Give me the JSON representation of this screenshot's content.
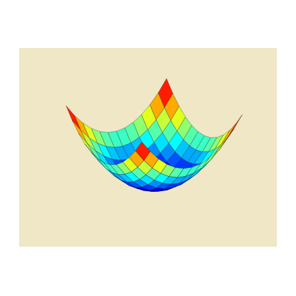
{
  "chart_data": {
    "type": "surface",
    "x": [
      -3,
      -2.5,
      -2,
      -1.5,
      -1,
      -0.5,
      0,
      0.5,
      1,
      1.5,
      2,
      2.5,
      3
    ],
    "y": [
      -3,
      -2.5,
      -2,
      -1.5,
      -1,
      -0.5,
      0,
      0.5,
      1,
      1.5,
      2,
      2.5,
      3
    ],
    "z": [
      [
        18,
        15.25,
        13,
        11.25,
        10,
        9.25,
        9,
        9.25,
        10,
        11.25,
        13,
        15.25,
        18
      ],
      [
        15.25,
        12.5,
        10.25,
        8.5,
        7.25,
        6.5,
        6.25,
        6.5,
        7.25,
        8.5,
        10.25,
        12.5,
        15.25
      ],
      [
        13,
        10.25,
        8,
        6.25,
        5,
        4.25,
        4,
        4.25,
        5,
        6.25,
        8,
        10.25,
        13
      ],
      [
        11.25,
        8.5,
        6.25,
        4.5,
        3.25,
        2.5,
        2.25,
        2.5,
        3.25,
        4.5,
        6.25,
        8.5,
        11.25
      ],
      [
        10,
        7.25,
        5,
        3.25,
        2,
        1.25,
        1,
        1.25,
        2,
        3.25,
        5,
        7.25,
        10
      ],
      [
        9.25,
        6.5,
        4.25,
        2.5,
        1.25,
        0.5,
        0.25,
        0.5,
        1.25,
        2.5,
        4.25,
        6.5,
        9.25
      ],
      [
        9,
        6.25,
        4,
        2.25,
        1,
        0.25,
        0,
        0.25,
        1,
        2.25,
        4,
        6.25,
        9
      ],
      [
        9.25,
        6.5,
        4.25,
        2.5,
        1.25,
        0.5,
        0.25,
        0.5,
        1.25,
        2.5,
        4.25,
        6.5,
        9.25
      ],
      [
        10,
        7.25,
        5,
        3.25,
        2,
        1.25,
        1,
        1.25,
        2,
        3.25,
        5,
        7.25,
        10
      ],
      [
        11.25,
        8.5,
        6.25,
        4.5,
        3.25,
        2.5,
        2.25,
        2.5,
        3.25,
        4.5,
        6.25,
        8.5,
        11.25
      ],
      [
        13,
        10.25,
        8,
        6.25,
        5,
        4.25,
        4,
        4.25,
        5,
        6.25,
        8,
        10.25,
        13
      ],
      [
        15.25,
        12.5,
        10.25,
        8.5,
        7.25,
        6.5,
        6.25,
        6.5,
        7.25,
        8.5,
        10.25,
        12.5,
        15.25
      ],
      [
        18,
        15.25,
        13,
        11.25,
        10,
        9.25,
        9,
        9.25,
        10,
        11.25,
        13,
        15.25,
        18
      ]
    ],
    "xlim": [
      -3,
      3
    ],
    "ylim": [
      -3,
      3
    ],
    "zlim": [
      0,
      18
    ],
    "grid": false,
    "tick_labels": false
  }
}
